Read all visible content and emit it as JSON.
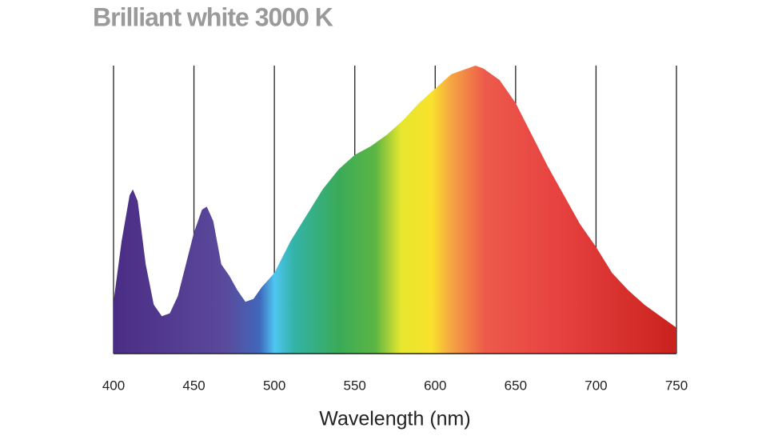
{
  "chart_data": {
    "type": "area",
    "title": "Brilliant white 3000 K",
    "x_label": "Wavelength (nm)",
    "x": [
      400,
      405,
      410,
      412,
      415,
      420,
      425,
      430,
      435,
      440,
      445,
      450,
      455,
      458,
      462,
      467,
      472,
      477,
      482,
      487,
      492,
      500,
      510,
      520,
      530,
      540,
      550,
      560,
      570,
      580,
      590,
      600,
      610,
      620,
      625,
      630,
      640,
      650,
      660,
      670,
      680,
      690,
      700,
      710,
      720,
      730,
      740,
      750
    ],
    "values": [
      18,
      39,
      55,
      57,
      53,
      31,
      17,
      13,
      14,
      20,
      31,
      42,
      50,
      51,
      46,
      31,
      27,
      22,
      18,
      19,
      23,
      28,
      39,
      48,
      57,
      64,
      69,
      72,
      76,
      81,
      87,
      92,
      97,
      99,
      100,
      99,
      95,
      87,
      76,
      65,
      55,
      45,
      37,
      28,
      22,
      17,
      13,
      9
    ],
    "xlim": [
      400,
      750
    ],
    "xticks": [
      400,
      450,
      500,
      550,
      600,
      650,
      700,
      750
    ],
    "ylim": [
      0,
      100
    ],
    "grid": true
  }
}
